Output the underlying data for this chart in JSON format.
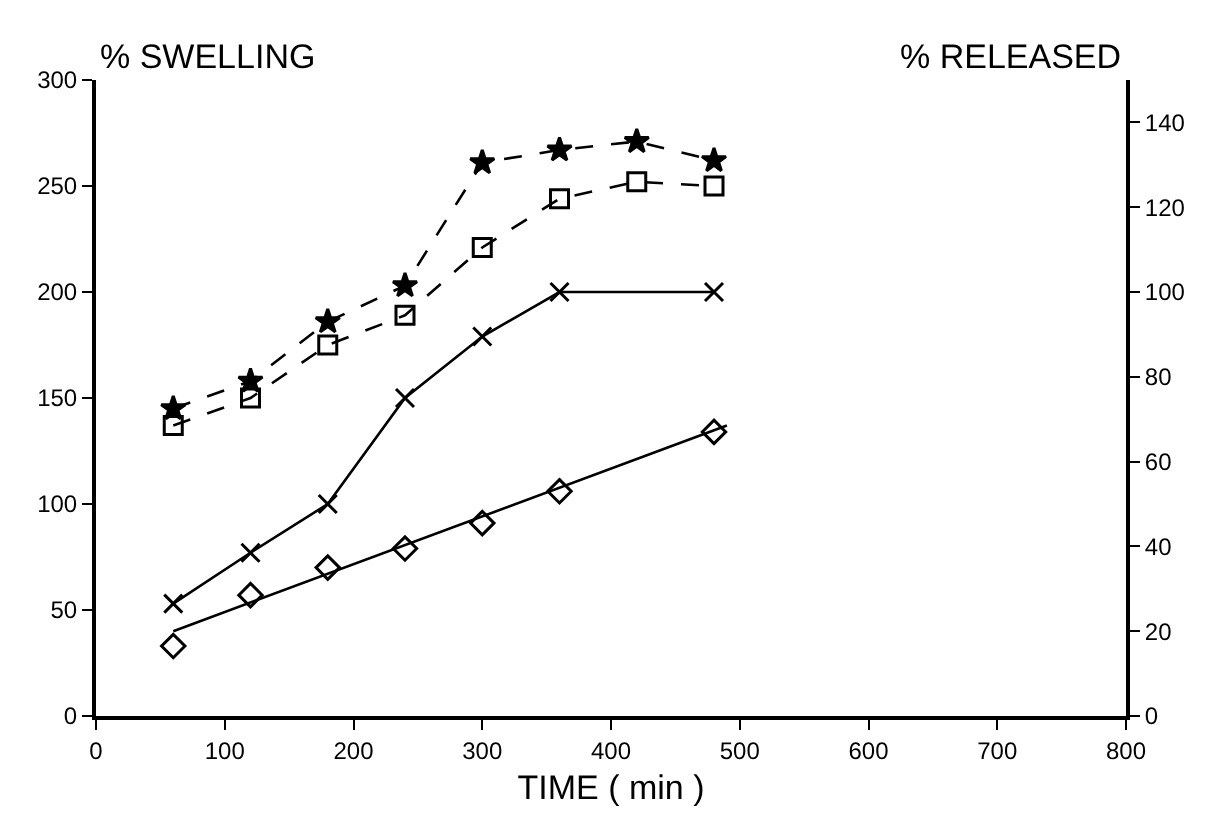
{
  "chart_data": {
    "type": "line",
    "xlabel": "TIME ( min )",
    "ylabel": "% SWELLING",
    "y2label": "% RELEASED",
    "x": [
      60,
      120,
      180,
      240,
      300,
      360,
      420,
      480
    ],
    "series": [
      {
        "color": "#000000",
        "marker": "star",
        "line_style": "dashed",
        "values": [
          145,
          158,
          186,
          203,
          261,
          267,
          271,
          262
        ]
      },
      {
        "color": "#000000",
        "marker": "square",
        "line_style": "dashed",
        "values": [
          137,
          150,
          175,
          189,
          221,
          244,
          252,
          250
        ]
      },
      {
        "color": "#000000",
        "marker": "cross",
        "line_style": "solid",
        "values": [
          53,
          77,
          100,
          150,
          179,
          200,
          null,
          200
        ]
      },
      {
        "color": "#000000",
        "marker": "diamond",
        "type": "scatter",
        "axis": "y2",
        "values": [
          16.5,
          28.5,
          35,
          39.5,
          45.5,
          53,
          null,
          67
        ]
      },
      {
        "color": "#000000",
        "marker": "none",
        "line_style": "solid",
        "axis": "y2",
        "x": [
          60,
          490
        ],
        "values": [
          20,
          68.5
        ]
      }
    ],
    "xlim": [
      0,
      800
    ],
    "xticks": [
      0,
      100,
      200,
      300,
      400,
      500,
      600,
      700,
      800
    ],
    "ylim": [
      0,
      300
    ],
    "yticks": [
      0,
      50,
      100,
      150,
      200,
      250,
      300
    ],
    "y2lim": [
      0,
      150
    ],
    "y2ticks": [
      0,
      20,
      40,
      60,
      80,
      100,
      120,
      140
    ]
  }
}
